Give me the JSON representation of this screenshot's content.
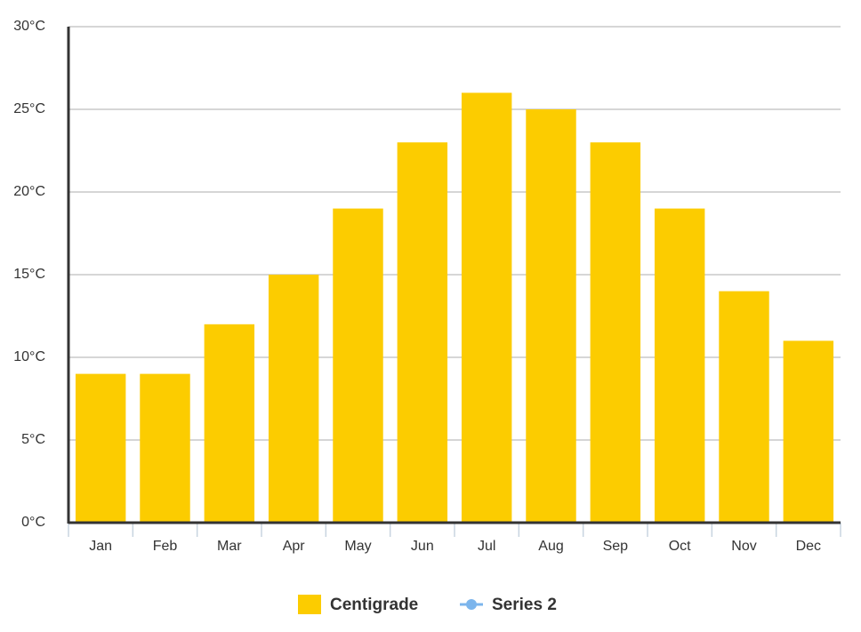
{
  "chart_data": {
    "type": "bar",
    "categories": [
      "Jan",
      "Feb",
      "Mar",
      "Apr",
      "May",
      "Jun",
      "Jul",
      "Aug",
      "Sep",
      "Oct",
      "Nov",
      "Dec"
    ],
    "series": [
      {
        "name": "Centigrade",
        "type": "bar",
        "color": "#fccc00",
        "values": [
          9,
          9,
          12,
          15,
          19,
          23,
          26,
          25,
          23,
          19,
          14,
          11
        ]
      },
      {
        "name": "Series 2",
        "type": "line",
        "color": "#7cb5ec",
        "values": [
          null,
          null,
          null,
          null,
          null,
          null,
          null,
          null,
          null,
          null,
          null,
          null
        ]
      }
    ],
    "ylim": [
      0,
      30
    ],
    "yticks": [
      {
        "value": 0,
        "label": "0°C"
      },
      {
        "value": 5,
        "label": "5°C"
      },
      {
        "value": 10,
        "label": "10°C"
      },
      {
        "value": 15,
        "label": "15°C"
      },
      {
        "value": 20,
        "label": "20°C"
      },
      {
        "value": 25,
        "label": "25°C"
      },
      {
        "value": 30,
        "label": "30°C"
      }
    ],
    "grid": true,
    "legend": "bottom"
  }
}
